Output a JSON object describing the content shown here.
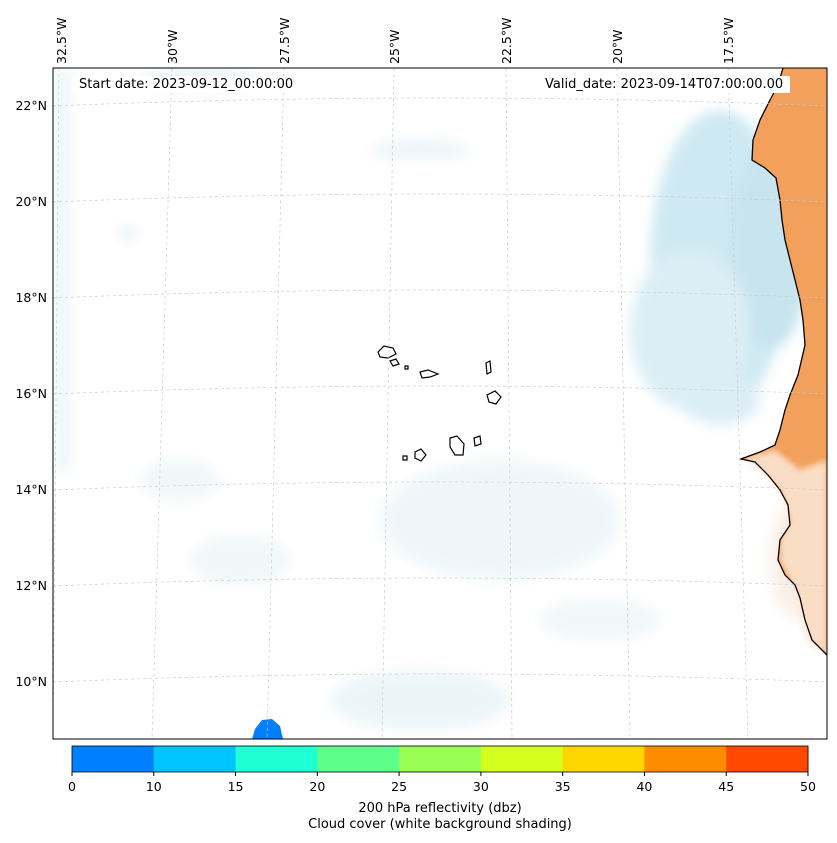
{
  "annotations": {
    "start_date": "Start date: 2023-09-12_00:00:00",
    "valid_date": "Valid_date: 2023-09-14T07:00:00.00"
  },
  "axes": {
    "lon_labels": [
      "32.5°W",
      "30°W",
      "27.5°W",
      "25°W",
      "22.5°W",
      "20°W",
      "17.5°W"
    ],
    "lat_labels": [
      "22°N",
      "20°N",
      "18°N",
      "16°N",
      "14°N",
      "12°N",
      "10°N"
    ]
  },
  "colorbar": {
    "ticks": [
      "0",
      "10",
      "15",
      "20",
      "25",
      "30",
      "35",
      "40",
      "45",
      "50"
    ],
    "colors": [
      "#0080ff",
      "#00c4ff",
      "#1effd6",
      "#5cff8a",
      "#99ff55",
      "#d4ff1e",
      "#ffd600",
      "#ff8c00",
      "#ff4800"
    ],
    "label": "200 hPa reflectivity (dbz)",
    "sublabel": "Cloud cover (white background shading)"
  },
  "chart_data": {
    "type": "map",
    "region": "Cape Verde / West African coast",
    "lon_range": [
      -33,
      -15
    ],
    "lat_range": [
      9,
      22.5
    ],
    "gridlines": true,
    "variable": "200 hPa reflectivity (dbz)",
    "color_levels": [
      0,
      10,
      15,
      20,
      25,
      30,
      35,
      40,
      45,
      50
    ],
    "overlay": "Cloud cover (white background shading)"
  },
  "colors": {
    "land_warm": "#f2a05c",
    "cloud_blue": "#a8d8e8",
    "grid": "#c8c8c8"
  }
}
